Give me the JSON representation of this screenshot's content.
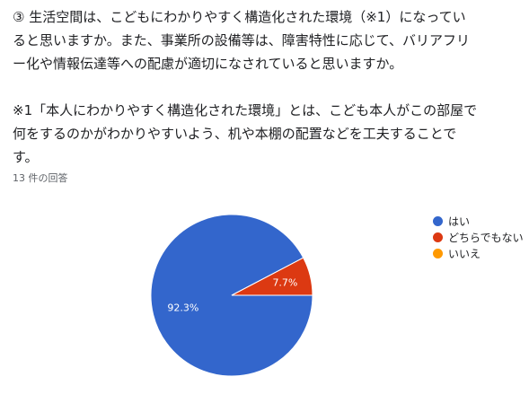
{
  "question": {
    "line1": "③ 生活空間は、こどもにわかりやすく構造化された環境（※1）になってい",
    "line2": "ると思いますか。また、事業所の設備等は、障害特性に応じて、バリアフリ",
    "line3": "ー化や情報伝達等への配慮が適切になされていると思いますか。",
    "line4": "※1「本人にわかりやすく構造化された環境」とは、こども本人がこの部屋で",
    "line5": "何をするのかがわかりやすいよう、机や本棚の配置などを工夫することで",
    "line6": "す。"
  },
  "responses_label": "13 件の回答",
  "colors": {
    "yes": "#3366cc",
    "neither": "#dc3912",
    "no": "#ff9900"
  },
  "chart_data": {
    "type": "pie",
    "title": "",
    "total_responses": 13,
    "slices": [
      {
        "label": "はい",
        "value": 92.3,
        "color": "#3366cc",
        "display": "92.3%"
      },
      {
        "label": "どちらでもない",
        "value": 7.7,
        "color": "#dc3912",
        "display": "7.7%"
      },
      {
        "label": "いいえ",
        "value": 0,
        "color": "#ff9900",
        "display": ""
      }
    ],
    "legend_position": "right"
  }
}
